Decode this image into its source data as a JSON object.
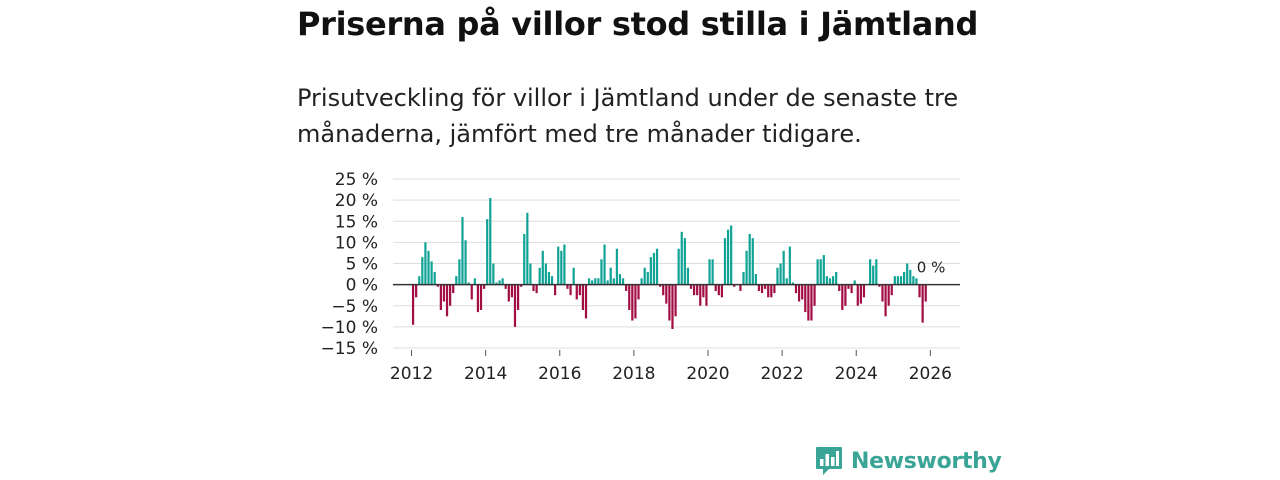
{
  "title": "Priserna på villor stod stilla i Jämtland",
  "subtitle": "Prisutveckling för villor i Jämtland under de senaste tre månaderna, jämfört med tre månader tidigare.",
  "brand": {
    "name": "Newsworthy",
    "icon": "bar-chart-speech-bubble-icon",
    "color": "#3aa597"
  },
  "colors": {
    "positive": "#11a396",
    "negative": "#a20d44",
    "grid": "#dddddd",
    "zero_line": "#333333"
  },
  "chart_data": {
    "type": "bar",
    "title": "Priserna på villor stod stilla i Jämtland",
    "ylabel": "",
    "xlabel": "",
    "ylim": [
      -15,
      25
    ],
    "yticks": [
      25,
      20,
      15,
      10,
      5,
      0,
      -5,
      -10,
      -15
    ],
    "ytick_labels": [
      "25 %",
      "20 %",
      "15 %",
      "10 %",
      "5 %",
      "0 %",
      "−5 %",
      "−10 %",
      "−15 %"
    ],
    "xlim": [
      2011.5,
      2026.8
    ],
    "xticks": [
      2012,
      2014,
      2016,
      2018,
      2020,
      2022,
      2024,
      2026
    ],
    "xtick_labels": [
      "2012",
      "2014",
      "2016",
      "2018",
      "2020",
      "2022",
      "2024",
      "2026"
    ],
    "start": {
      "year": 2012,
      "month": 1
    },
    "unit": "%",
    "last_value_label": "0 %",
    "values": [
      -9.5,
      -3,
      2,
      6.5,
      10,
      8,
      5.5,
      3,
      -0.5,
      -6,
      -4,
      -7.5,
      -5,
      -2,
      2,
      6,
      16,
      10.5,
      0.5,
      -3.5,
      1.5,
      -6.5,
      -6,
      -1,
      15.5,
      20.5,
      5,
      0.5,
      1,
      1.5,
      -1,
      -4,
      -3,
      -10,
      -6,
      -0.5,
      12,
      17,
      5,
      -1.5,
      -2,
      4,
      8,
      5,
      3,
      2,
      -2.5,
      9,
      8,
      9.5,
      -1,
      -2.5,
      4,
      -3.5,
      -2.5,
      -6,
      -8,
      1.5,
      1,
      1.5,
      1.5,
      6,
      9.5,
      1,
      4,
      1.5,
      8.5,
      2.5,
      1.5,
      -1.5,
      -6,
      -8.5,
      -8,
      -3.5,
      1.5,
      4,
      3,
      6.5,
      7.5,
      8.5,
      -0.5,
      -2.5,
      -4.5,
      -8.5,
      -10.5,
      -7.5,
      8.5,
      12.5,
      11,
      4,
      -1,
      -2.5,
      -2.5,
      -5,
      -3,
      -5,
      6,
      6,
      -1.5,
      -2.5,
      -3,
      11,
      13,
      14,
      -0.5,
      0,
      -1.5,
      3,
      8,
      12,
      11,
      2.5,
      -1.5,
      -2,
      -1,
      -3,
      -3,
      -2,
      4,
      5,
      8,
      1.5,
      9,
      0.5,
      -2,
      -4,
      -3.5,
      -6.5,
      -8.5,
      -8.5,
      -5,
      6,
      6,
      7,
      2,
      1.5,
      2,
      3,
      -1.5,
      -6,
      -5,
      -1,
      -2,
      1,
      -5,
      -4.5,
      -3,
      0,
      6,
      4.5,
      6,
      -0.5,
      -4,
      -7.5,
      -5,
      -2.5,
      2,
      2,
      2,
      3,
      5,
      3.5,
      2,
      1.5,
      -3,
      -9,
      -4,
      0
    ]
  }
}
